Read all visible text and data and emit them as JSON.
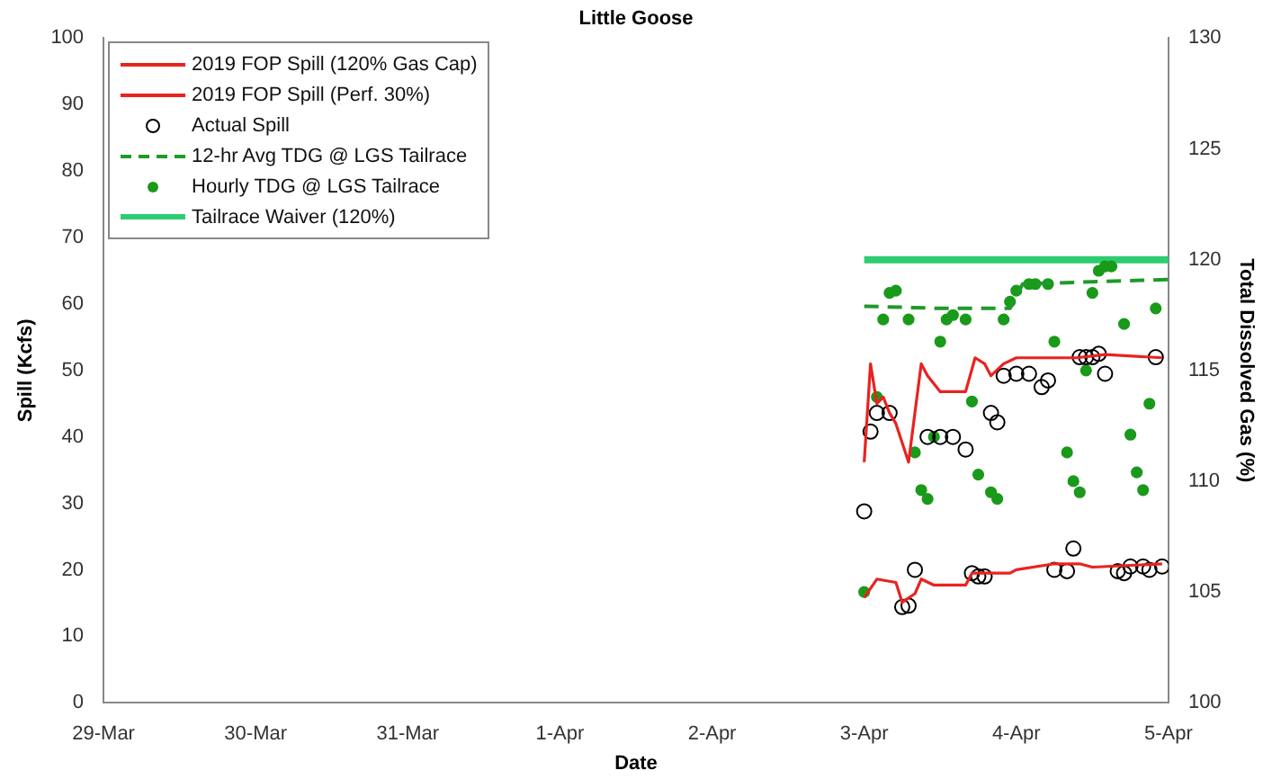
{
  "chart_data": {
    "type": "line",
    "title": "Little Goose",
    "xlabel": "Date",
    "ylabel": "Spill (Kcfs)",
    "y2label": "Total Dissolved Gas (%)",
    "xlim": [
      "2019-03-29",
      "2019-04-05"
    ],
    "xticks": [
      {
        "value": "2019-03-29",
        "label": "29-Mar"
      },
      {
        "value": "2019-03-30",
        "label": "30-Mar"
      },
      {
        "value": "2019-03-31",
        "label": "31-Mar"
      },
      {
        "value": "2019-04-01",
        "label": "1-Apr"
      },
      {
        "value": "2019-04-02",
        "label": "2-Apr"
      },
      {
        "value": "2019-04-03",
        "label": "3-Apr"
      },
      {
        "value": "2019-04-04",
        "label": "4-Apr"
      },
      {
        "value": "2019-04-05",
        "label": "5-Apr"
      }
    ],
    "ylim": [
      0,
      100
    ],
    "yticks": [
      0,
      10,
      20,
      30,
      40,
      50,
      60,
      70,
      80,
      90,
      100
    ],
    "y2lim": [
      100,
      130
    ],
    "y2ticks": [
      100,
      105,
      110,
      115,
      120,
      125,
      130
    ],
    "grid": false,
    "legend": "top left",
    "series": [
      {
        "name": "2019 FOP Spill (120% Gas Cap)",
        "type": "line",
        "color": "#e8231f",
        "marker": "none",
        "line_style": "solid",
        "x": [
          "2019-04-03T00:00",
          "2019-04-03T01:00",
          "2019-04-03T02:00",
          "2019-04-03T03:00",
          "2019-04-03T04:00",
          "2019-04-03T05:00",
          "2019-04-03T07:00",
          "2019-04-03T09:00",
          "2019-04-03T10:00",
          "2019-04-03T12:00",
          "2019-04-03T16:00",
          "2019-04-03T17:30",
          "2019-04-03T19:00",
          "2019-04-03T20:00",
          "2019-04-03T22:00",
          "2019-04-04T00:00",
          "2019-04-04T09:30",
          "2019-04-04T14:00",
          "2019-04-04T23:00"
        ],
        "values": [
          36.2,
          51,
          45,
          46,
          43.6,
          42,
          36.2,
          51,
          49.2,
          46.8,
          46.8,
          51.9,
          51,
          49.2,
          51,
          51.9,
          51.9,
          52.4,
          51.9
        ]
      },
      {
        "name": "2019 FOP Spill (Perf. 30%)",
        "type": "line",
        "color": "#e8231f",
        "marker": "none",
        "line_style": "solid",
        "x": [
          "2019-04-03T00:00",
          "2019-04-03T02:00",
          "2019-04-03T05:00",
          "2019-04-03T06:00",
          "2019-04-03T08:00",
          "2019-04-03T09:00",
          "2019-04-03T11:00",
          "2019-04-03T16:00",
          "2019-04-03T17:00",
          "2019-04-03T23:00",
          "2019-04-04T00:00",
          "2019-04-04T06:00",
          "2019-04-04T10:00",
          "2019-04-04T12:00",
          "2019-04-04T23:00"
        ],
        "values": [
          15.8,
          18.6,
          18.1,
          15.1,
          16.4,
          18.6,
          17.7,
          17.7,
          19.5,
          19.5,
          20,
          20.9,
          20.9,
          20.4,
          20.9
        ]
      },
      {
        "name": "Actual Spill",
        "type": "scatter",
        "color": "#000000",
        "marker": "circle",
        "x": [
          "2019-04-03T00:00",
          "2019-04-03T01:00",
          "2019-04-03T02:00",
          "2019-04-03T04:00",
          "2019-04-03T06:00",
          "2019-04-03T07:00",
          "2019-04-03T08:00",
          "2019-04-03T10:00",
          "2019-04-03T12:00",
          "2019-04-03T14:00",
          "2019-04-03T16:00",
          "2019-04-03T17:00",
          "2019-04-03T18:00",
          "2019-04-03T19:00",
          "2019-04-03T20:00",
          "2019-04-03T21:00",
          "2019-04-03T22:00",
          "2019-04-04T00:00",
          "2019-04-04T02:00",
          "2019-04-04T04:00",
          "2019-04-04T05:00",
          "2019-04-04T06:00",
          "2019-04-04T08:00",
          "2019-04-04T09:00",
          "2019-04-04T10:00",
          "2019-04-04T11:00",
          "2019-04-04T12:00",
          "2019-04-04T13:00",
          "2019-04-04T14:00",
          "2019-04-04T16:00",
          "2019-04-04T17:00",
          "2019-04-04T18:00",
          "2019-04-04T20:00",
          "2019-04-04T21:00",
          "2019-04-04T22:00",
          "2019-04-04T23:00"
        ],
        "values": [
          28.8,
          40.8,
          43.6,
          43.6,
          14.4,
          14.6,
          20,
          40,
          40,
          40,
          38.1,
          19.5,
          19,
          19,
          43.6,
          42.2,
          49.2,
          49.5,
          49.5,
          47.5,
          48.5,
          20,
          19.8,
          23.2,
          52,
          52,
          52,
          52.5,
          49.5,
          19.8,
          19.5,
          20.5,
          20.5,
          20,
          52,
          20.5
        ]
      },
      {
        "name": "12-hr Avg TDG @ LGS Tailrace",
        "type": "line",
        "axis": "y2",
        "color": "#1f9a2a",
        "marker": "none",
        "line_style": "dashed",
        "x": [
          "2019-04-03T00:00",
          "2019-04-03T12:00",
          "2019-04-03T23:00",
          "2019-04-04T01:00",
          "2019-04-04T12:00",
          "2019-04-05T00:00"
        ],
        "values": [
          117.9,
          117.8,
          117.8,
          118.9,
          119.0,
          119.1
        ]
      },
      {
        "name": "Hourly TDG @ LGS Tailrace",
        "type": "scatter",
        "axis": "y2",
        "color": "#1a9a1a",
        "marker": "circle",
        "x": [
          "2019-04-03T00:00",
          "2019-04-03T02:00",
          "2019-04-03T03:00",
          "2019-04-03T04:00",
          "2019-04-03T05:00",
          "2019-04-03T07:00",
          "2019-04-03T08:00",
          "2019-04-03T09:00",
          "2019-04-03T10:00",
          "2019-04-03T11:00",
          "2019-04-03T12:00",
          "2019-04-03T13:00",
          "2019-04-03T14:00",
          "2019-04-03T16:00",
          "2019-04-03T17:00",
          "2019-04-03T18:00",
          "2019-04-03T20:00",
          "2019-04-03T21:00",
          "2019-04-03T22:00",
          "2019-04-03T23:00",
          "2019-04-04T00:00",
          "2019-04-04T02:00",
          "2019-04-04T03:00",
          "2019-04-04T05:00",
          "2019-04-04T06:00",
          "2019-04-04T08:00",
          "2019-04-04T09:00",
          "2019-04-04T10:00",
          "2019-04-04T11:00",
          "2019-04-04T12:00",
          "2019-04-04T13:00",
          "2019-04-04T14:00",
          "2019-04-04T15:00",
          "2019-04-04T17:00",
          "2019-04-04T18:00",
          "2019-04-04T19:00",
          "2019-04-04T20:00",
          "2019-04-04T21:00",
          "2019-04-04T22:00"
        ],
        "values": [
          105.0,
          113.8,
          117.3,
          118.5,
          118.6,
          117.3,
          111.3,
          109.6,
          109.2,
          112.0,
          116.3,
          117.3,
          117.5,
          117.3,
          113.6,
          110.3,
          109.5,
          109.2,
          117.3,
          118.1,
          118.6,
          118.9,
          118.9,
          118.9,
          116.3,
          111.3,
          110.0,
          109.5,
          115.0,
          118.5,
          119.5,
          119.7,
          119.7,
          117.1,
          112.1,
          110.4,
          109.6,
          113.5,
          117.8
        ]
      },
      {
        "name": "Tailrace Waiver (120%)",
        "type": "line",
        "axis": "y2",
        "color": "#2ecc71",
        "marker": "none",
        "line_style": "solid",
        "x": [
          "2019-04-03T00:00",
          "2019-04-05T00:00"
        ],
        "values": [
          120,
          120
        ]
      }
    ]
  }
}
